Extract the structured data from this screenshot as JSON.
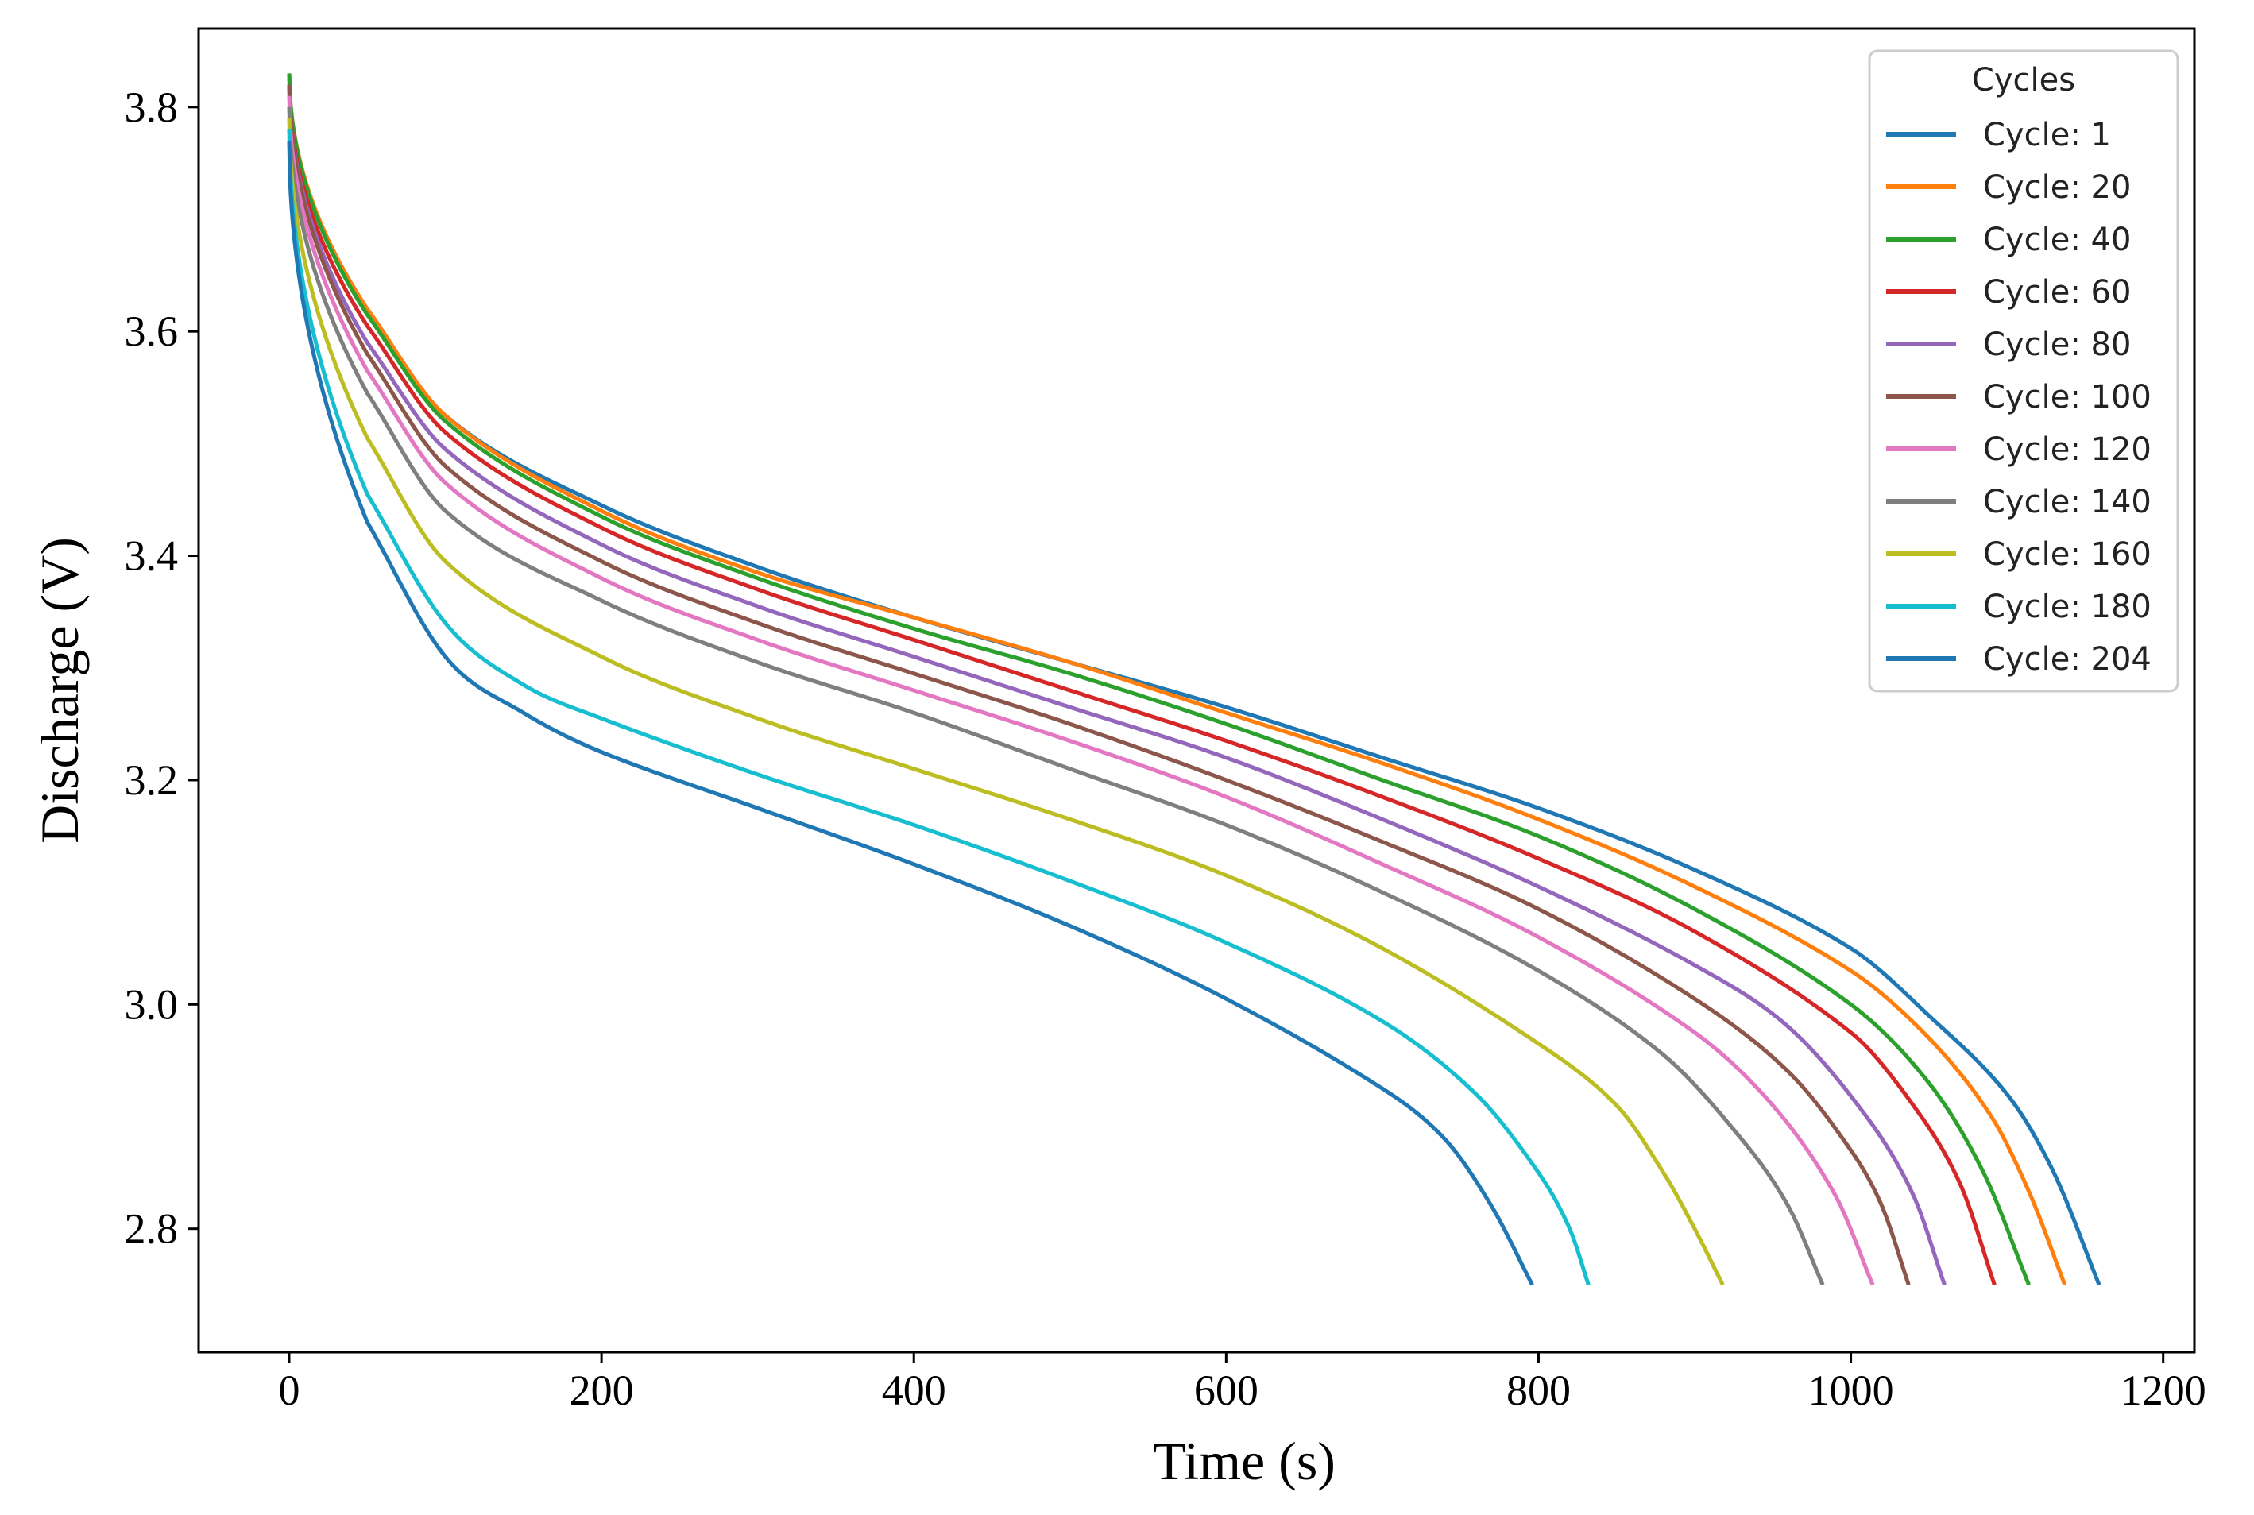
{
  "chart_data": {
    "type": "line",
    "title": "",
    "xlabel": "Time (s)",
    "ylabel": "Discharge (V)",
    "xlim": [
      -58,
      1220
    ],
    "ylim": [
      2.69,
      3.87
    ],
    "xticks": [
      0,
      200,
      400,
      600,
      800,
      1000,
      1200
    ],
    "yticks": [
      2.8,
      3.0,
      3.2,
      3.4,
      3.6,
      3.8
    ],
    "xtick_labels": [
      "0",
      "200",
      "400",
      "600",
      "800",
      "1000",
      "1200"
    ],
    "ytick_labels": [
      "2.8",
      "3.0",
      "3.2",
      "3.4",
      "3.6",
      "3.8"
    ],
    "grid": false,
    "legend": {
      "title": "Cycles",
      "position": "top-right"
    },
    "series": [
      {
        "name": "Cycle: 1",
        "color": "#1f77b4",
        "v0": 3.83,
        "end_time": 1159,
        "points": [
          [
            0,
            3.83
          ],
          [
            50,
            3.62
          ],
          [
            100,
            3.525
          ],
          [
            200,
            3.445
          ],
          [
            300,
            3.39
          ],
          [
            400,
            3.345
          ],
          [
            500,
            3.305
          ],
          [
            600,
            3.265
          ],
          [
            700,
            3.22
          ],
          [
            800,
            3.175
          ],
          [
            900,
            3.12
          ],
          [
            1000,
            3.05
          ],
          [
            1050,
            2.99
          ],
          [
            1100,
            2.92
          ],
          [
            1130,
            2.85
          ],
          [
            1159,
            2.75
          ]
        ]
      },
      {
        "name": "Cycle: 20",
        "color": "#ff7f0e",
        "v0": 3.83,
        "end_time": 1137,
        "points": [
          [
            0,
            3.83
          ],
          [
            50,
            3.62
          ],
          [
            100,
            3.525
          ],
          [
            200,
            3.44
          ],
          [
            300,
            3.385
          ],
          [
            400,
            3.345
          ],
          [
            500,
            3.305
          ],
          [
            600,
            3.26
          ],
          [
            700,
            3.215
          ],
          [
            800,
            3.165
          ],
          [
            900,
            3.105
          ],
          [
            1000,
            3.03
          ],
          [
            1050,
            2.97
          ],
          [
            1090,
            2.9
          ],
          [
            1115,
            2.83
          ],
          [
            1137,
            2.75
          ]
        ]
      },
      {
        "name": "Cycle: 40",
        "color": "#2ca02c",
        "v0": 3.83,
        "end_time": 1114,
        "points": [
          [
            0,
            3.83
          ],
          [
            50,
            3.615
          ],
          [
            100,
            3.52
          ],
          [
            200,
            3.435
          ],
          [
            300,
            3.38
          ],
          [
            400,
            3.335
          ],
          [
            500,
            3.295
          ],
          [
            600,
            3.25
          ],
          [
            700,
            3.2
          ],
          [
            800,
            3.15
          ],
          [
            900,
            3.085
          ],
          [
            1000,
            3.0
          ],
          [
            1050,
            2.93
          ],
          [
            1085,
            2.85
          ],
          [
            1114,
            2.75
          ]
        ]
      },
      {
        "name": "Cycle: 60",
        "color": "#d62728",
        "v0": 3.82,
        "end_time": 1092,
        "points": [
          [
            0,
            3.82
          ],
          [
            50,
            3.605
          ],
          [
            100,
            3.51
          ],
          [
            200,
            3.425
          ],
          [
            300,
            3.37
          ],
          [
            400,
            3.325
          ],
          [
            500,
            3.28
          ],
          [
            600,
            3.235
          ],
          [
            700,
            3.185
          ],
          [
            800,
            3.13
          ],
          [
            900,
            3.065
          ],
          [
            1000,
            2.975
          ],
          [
            1040,
            2.91
          ],
          [
            1070,
            2.84
          ],
          [
            1092,
            2.75
          ]
        ]
      },
      {
        "name": "Cycle: 80",
        "color": "#9467bd",
        "v0": 3.82,
        "end_time": 1060,
        "points": [
          [
            0,
            3.82
          ],
          [
            50,
            3.59
          ],
          [
            100,
            3.495
          ],
          [
            200,
            3.41
          ],
          [
            300,
            3.355
          ],
          [
            400,
            3.31
          ],
          [
            500,
            3.265
          ],
          [
            600,
            3.22
          ],
          [
            700,
            3.165
          ],
          [
            800,
            3.105
          ],
          [
            900,
            3.035
          ],
          [
            960,
            2.98
          ],
          [
            1010,
            2.9
          ],
          [
            1040,
            2.83
          ],
          [
            1060,
            2.75
          ]
        ]
      },
      {
        "name": "Cycle: 100",
        "color": "#8c564b",
        "v0": 3.82,
        "end_time": 1037,
        "points": [
          [
            0,
            3.82
          ],
          [
            50,
            3.58
          ],
          [
            100,
            3.48
          ],
          [
            200,
            3.395
          ],
          [
            300,
            3.34
          ],
          [
            400,
            3.295
          ],
          [
            500,
            3.25
          ],
          [
            600,
            3.2
          ],
          [
            700,
            3.145
          ],
          [
            800,
            3.085
          ],
          [
            900,
            3.005
          ],
          [
            960,
            2.94
          ],
          [
            1000,
            2.87
          ],
          [
            1020,
            2.82
          ],
          [
            1037,
            2.75
          ]
        ]
      },
      {
        "name": "Cycle: 120",
        "color": "#e377c2",
        "v0": 3.81,
        "end_time": 1014,
        "points": [
          [
            0,
            3.81
          ],
          [
            50,
            3.565
          ],
          [
            100,
            3.465
          ],
          [
            200,
            3.38
          ],
          [
            300,
            3.325
          ],
          [
            400,
            3.28
          ],
          [
            500,
            3.235
          ],
          [
            600,
            3.185
          ],
          [
            700,
            3.125
          ],
          [
            800,
            3.06
          ],
          [
            900,
            2.975
          ],
          [
            950,
            2.91
          ],
          [
            990,
            2.83
          ],
          [
            1014,
            2.75
          ]
        ]
      },
      {
        "name": "Cycle: 140",
        "color": "#7f7f7f",
        "v0": 3.8,
        "end_time": 982,
        "points": [
          [
            0,
            3.8
          ],
          [
            50,
            3.545
          ],
          [
            100,
            3.44
          ],
          [
            200,
            3.36
          ],
          [
            300,
            3.305
          ],
          [
            400,
            3.26
          ],
          [
            500,
            3.21
          ],
          [
            600,
            3.16
          ],
          [
            700,
            3.1
          ],
          [
            800,
            3.03
          ],
          [
            880,
            2.955
          ],
          [
            930,
            2.88
          ],
          [
            960,
            2.82
          ],
          [
            982,
            2.75
          ]
        ]
      },
      {
        "name": "Cycle: 160",
        "color": "#bcbd22",
        "v0": 3.79,
        "end_time": 918,
        "points": [
          [
            0,
            3.79
          ],
          [
            50,
            3.505
          ],
          [
            100,
            3.395
          ],
          [
            200,
            3.31
          ],
          [
            300,
            3.255
          ],
          [
            400,
            3.21
          ],
          [
            500,
            3.165
          ],
          [
            600,
            3.115
          ],
          [
            700,
            3.05
          ],
          [
            800,
            2.965
          ],
          [
            850,
            2.91
          ],
          [
            880,
            2.85
          ],
          [
            900,
            2.8
          ],
          [
            918,
            2.75
          ]
        ]
      },
      {
        "name": "Cycle: 180",
        "color": "#17becf",
        "v0": 3.78,
        "end_time": 832,
        "points": [
          [
            0,
            3.78
          ],
          [
            50,
            3.455
          ],
          [
            100,
            3.34
          ],
          [
            150,
            3.285
          ],
          [
            200,
            3.255
          ],
          [
            300,
            3.205
          ],
          [
            400,
            3.16
          ],
          [
            500,
            3.11
          ],
          [
            600,
            3.055
          ],
          [
            700,
            2.985
          ],
          [
            760,
            2.92
          ],
          [
            800,
            2.85
          ],
          [
            820,
            2.8
          ],
          [
            832,
            2.75
          ]
        ]
      },
      {
        "name": "Cycle: 204",
        "color": "#1f77b4",
        "v0": 3.77,
        "end_time": 796,
        "points": [
          [
            0,
            3.77
          ],
          [
            50,
            3.43
          ],
          [
            100,
            3.31
          ],
          [
            150,
            3.26
          ],
          [
            200,
            3.225
          ],
          [
            300,
            3.175
          ],
          [
            400,
            3.125
          ],
          [
            500,
            3.07
          ],
          [
            600,
            3.005
          ],
          [
            700,
            2.925
          ],
          [
            740,
            2.88
          ],
          [
            770,
            2.82
          ],
          [
            796,
            2.75
          ]
        ]
      }
    ]
  }
}
